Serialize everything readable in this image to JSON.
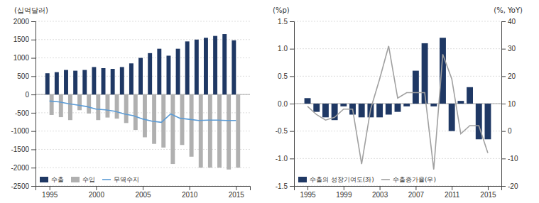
{
  "chart_data": [
    {
      "type": "bar",
      "ylabel": "(십억달러)",
      "x": [
        1995,
        1996,
        1997,
        1998,
        1999,
        2000,
        2001,
        2002,
        2003,
        2004,
        2005,
        2006,
        2007,
        2008,
        2009,
        2010,
        2011,
        2012,
        2013,
        2014,
        2015
      ],
      "xlim": [
        1993.5,
        2016.5
      ],
      "xticks": [
        1995,
        2000,
        2005,
        2010,
        2015
      ],
      "ylim": [
        -2500,
        2000
      ],
      "yticks": [
        -2500,
        -2000,
        -1500,
        -1000,
        -500,
        0,
        500,
        1000,
        1500,
        2000
      ],
      "grid": true,
      "legend": "lower left",
      "series": [
        {
          "name": "수출",
          "color": "#1f3864",
          "values": [
            580,
            610,
            670,
            650,
            670,
            750,
            720,
            700,
            750,
            850,
            1000,
            1130,
            1250,
            1060,
            1250,
            1450,
            1500,
            1550,
            1600,
            1650,
            1480
          ]
        },
        {
          "name": "수입",
          "color": "#b0b0b0",
          "values": [
            -560,
            -620,
            -700,
            -430,
            -520,
            -700,
            -630,
            -660,
            -780,
            -970,
            -1170,
            -1350,
            -1450,
            -1900,
            -1380,
            -1700,
            -2000,
            -2000,
            -2000,
            -2050,
            -2000
          ]
        },
        {
          "name": "무역수지",
          "type": "line",
          "color": "#5b9bd5",
          "values": [
            -180,
            -200,
            -250,
            -290,
            -330,
            -400,
            -420,
            -460,
            -530,
            -580,
            -670,
            -730,
            -760,
            -530,
            -650,
            -680,
            -710,
            -700,
            -700,
            -710,
            -710
          ]
        }
      ]
    },
    {
      "type": "bar",
      "ylabel": "(%p)",
      "y2label": "(%, YoY)",
      "x": [
        1995,
        1996,
        1997,
        1998,
        1999,
        2000,
        2001,
        2002,
        2003,
        2004,
        2005,
        2006,
        2007,
        2008,
        2009,
        2010,
        2011,
        2012,
        2013,
        2014,
        2015
      ],
      "xlim": [
        1993.5,
        2016.5
      ],
      "xticks": [
        1995,
        1999,
        2003,
        2007,
        2011,
        2015
      ],
      "ylim": [
        -1.5,
        1.5
      ],
      "yticks": [
        -1.5,
        {
          "value": -1.0,
          "label": "-1.0"
        },
        -0.5,
        {
          "value": 0,
          "label": "0.0"
        },
        0.5,
        {
          "value": 1.0,
          "label": "1.0"
        },
        1.5
      ],
      "y2lim": [
        -20,
        40
      ],
      "y2ticks": [
        -20,
        -10,
        0,
        10,
        20,
        30,
        40
      ],
      "grid": true,
      "legend": "lower left",
      "series": [
        {
          "name": "수출의 성장기여도(좌)",
          "color": "#1f3864",
          "values": [
            0.1,
            -0.15,
            -0.25,
            -0.3,
            -0.05,
            -0.2,
            -0.25,
            -0.25,
            -0.25,
            -0.2,
            -0.15,
            -0.05,
            0.6,
            1.1,
            -0.05,
            1.2,
            -0.5,
            0.05,
            0.3,
            -0.65,
            -0.65
          ]
        },
        {
          "name": "수출증가율(우)",
          "type": "line",
          "axis": "y2",
          "color": "#a0a0a0",
          "values": [
            9,
            6,
            4,
            5,
            8,
            8,
            -12,
            8,
            19,
            31,
            12,
            14,
            14,
            14,
            -14,
            28,
            19,
            -1,
            2,
            2,
            -8
          ]
        }
      ]
    }
  ]
}
